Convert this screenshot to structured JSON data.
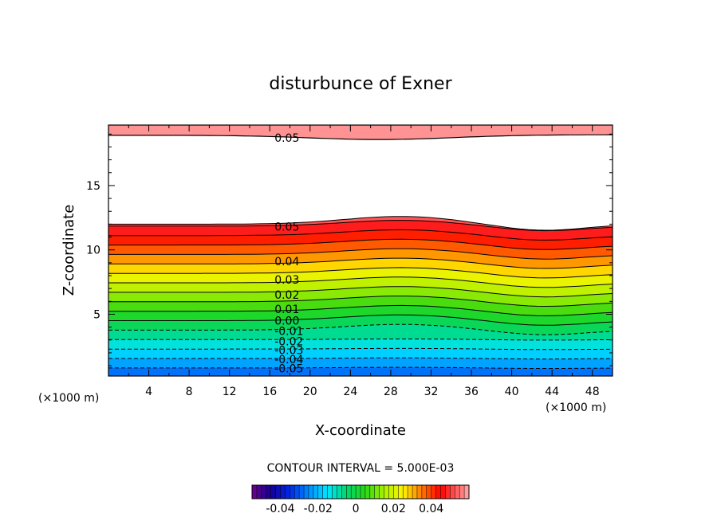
{
  "chart_data": {
    "type": "contour",
    "title": "disturbunce of Exner",
    "xlabel": "X-coordinate",
    "ylabel": "Z-coordinate",
    "x_unit_left": "(×1000 m)",
    "x_unit_right": "(×1000 m)",
    "xlim": [
      0,
      50
    ],
    "ylim": [
      0.2,
      19.7
    ],
    "x_ticks": [
      "4",
      "8",
      "12",
      "16",
      "20",
      "24",
      "28",
      "32",
      "36",
      "40",
      "44",
      "48"
    ],
    "y_ticks": [
      "5",
      "10",
      "15"
    ],
    "contour_interval_text": "CONTOUR INTERVAL = 5.000E-03",
    "contour_labels": [
      {
        "text": "0.05",
        "x": 17.5,
        "z": 18.7
      },
      {
        "text": "0.05",
        "x": 17.5,
        "z": 11.8
      },
      {
        "text": "0.04",
        "x": 17.5,
        "z": 9.1
      },
      {
        "text": "0.03",
        "x": 17.5,
        "z": 7.7
      },
      {
        "text": "0.02",
        "x": 17.5,
        "z": 6.5
      },
      {
        "text": "0.01",
        "x": 17.5,
        "z": 5.4
      },
      {
        "text": "0.00",
        "x": 17.5,
        "z": 4.5
      },
      {
        "text": "-0.01",
        "x": 17.5,
        "z": 3.7
      },
      {
        "text": "-0.02",
        "x": 17.5,
        "z": 2.9
      },
      {
        "text": "-0.03",
        "x": 17.5,
        "z": 2.2
      },
      {
        "text": "-0.04",
        "x": 17.5,
        "z": 1.5
      },
      {
        "text": "-0.05",
        "x": 17.5,
        "z": 0.8
      }
    ],
    "colorbar": {
      "min": -0.055,
      "max": 0.06,
      "tick_labels": [
        "-0.04",
        "-0.02",
        "0",
        "0.02",
        "0.04"
      ]
    },
    "grid": false,
    "legend": "colorbar-bottom"
  }
}
